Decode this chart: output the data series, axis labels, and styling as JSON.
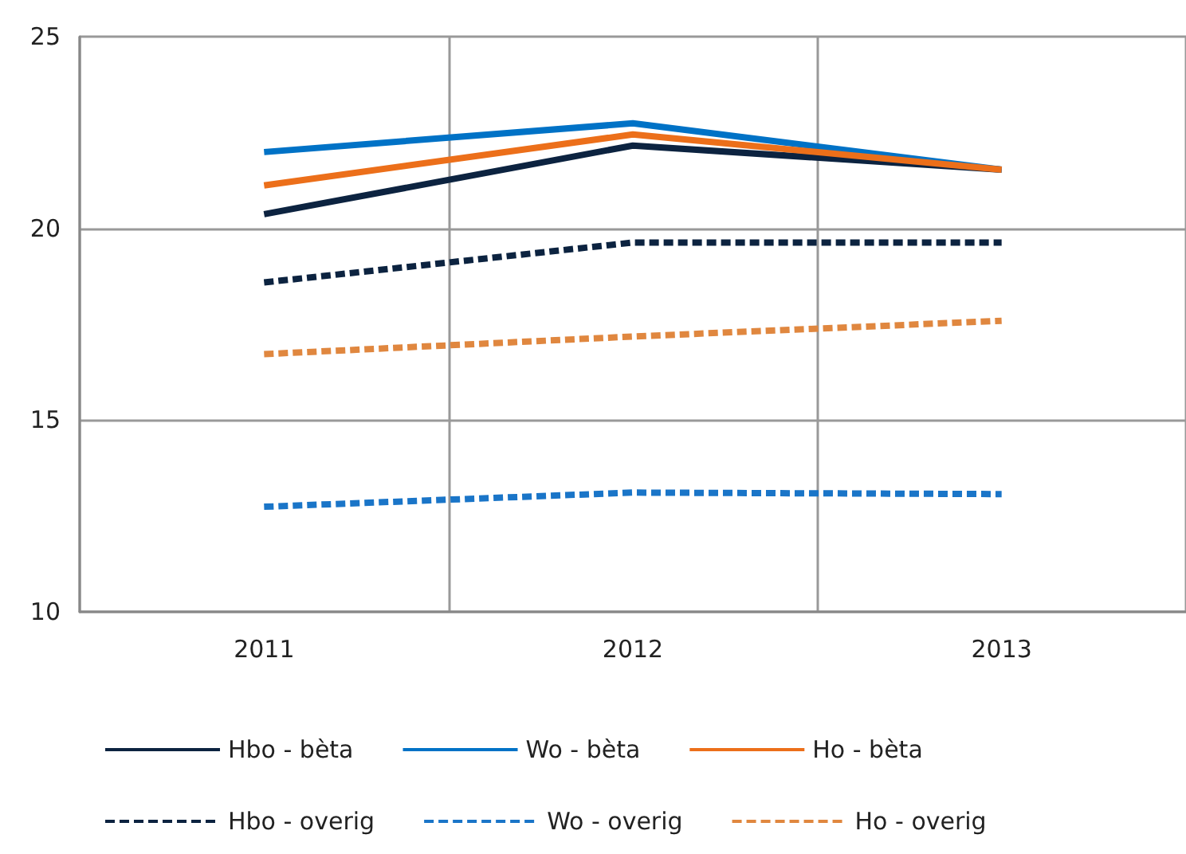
{
  "chart_data": {
    "type": "line",
    "categories": [
      "2011",
      "2012",
      "2013"
    ],
    "ylim": [
      10,
      25
    ],
    "yticks": [
      10,
      15,
      20,
      25
    ],
    "grid": true,
    "legend": "bottom",
    "marker": "none",
    "series": [
      {
        "name": "Hbo - bèta",
        "color": "#0c2340",
        "line_style": "solid",
        "values": [
          20.37,
          22.16,
          21.53
        ]
      },
      {
        "name": "Wo - bèta",
        "color": "#0072c6",
        "line_style": "solid",
        "values": [
          21.99,
          22.74,
          21.53
        ]
      },
      {
        "name": "Ho - bèta",
        "color": "#ec6f1a",
        "line_style": "solid",
        "values": [
          21.12,
          22.45,
          21.53
        ]
      },
      {
        "name": "Hbo - overig",
        "color": "#0c2340",
        "line_style": "dashed",
        "values": [
          18.59,
          19.63,
          19.63
        ]
      },
      {
        "name": "Wo - overig",
        "color": "#1a75c8",
        "line_style": "dashed",
        "values": [
          12.74,
          13.11,
          13.07
        ]
      },
      {
        "name": "Ho - overig",
        "color": "#e0873f",
        "line_style": "dashed",
        "values": [
          16.72,
          17.18,
          17.59
        ]
      }
    ]
  }
}
